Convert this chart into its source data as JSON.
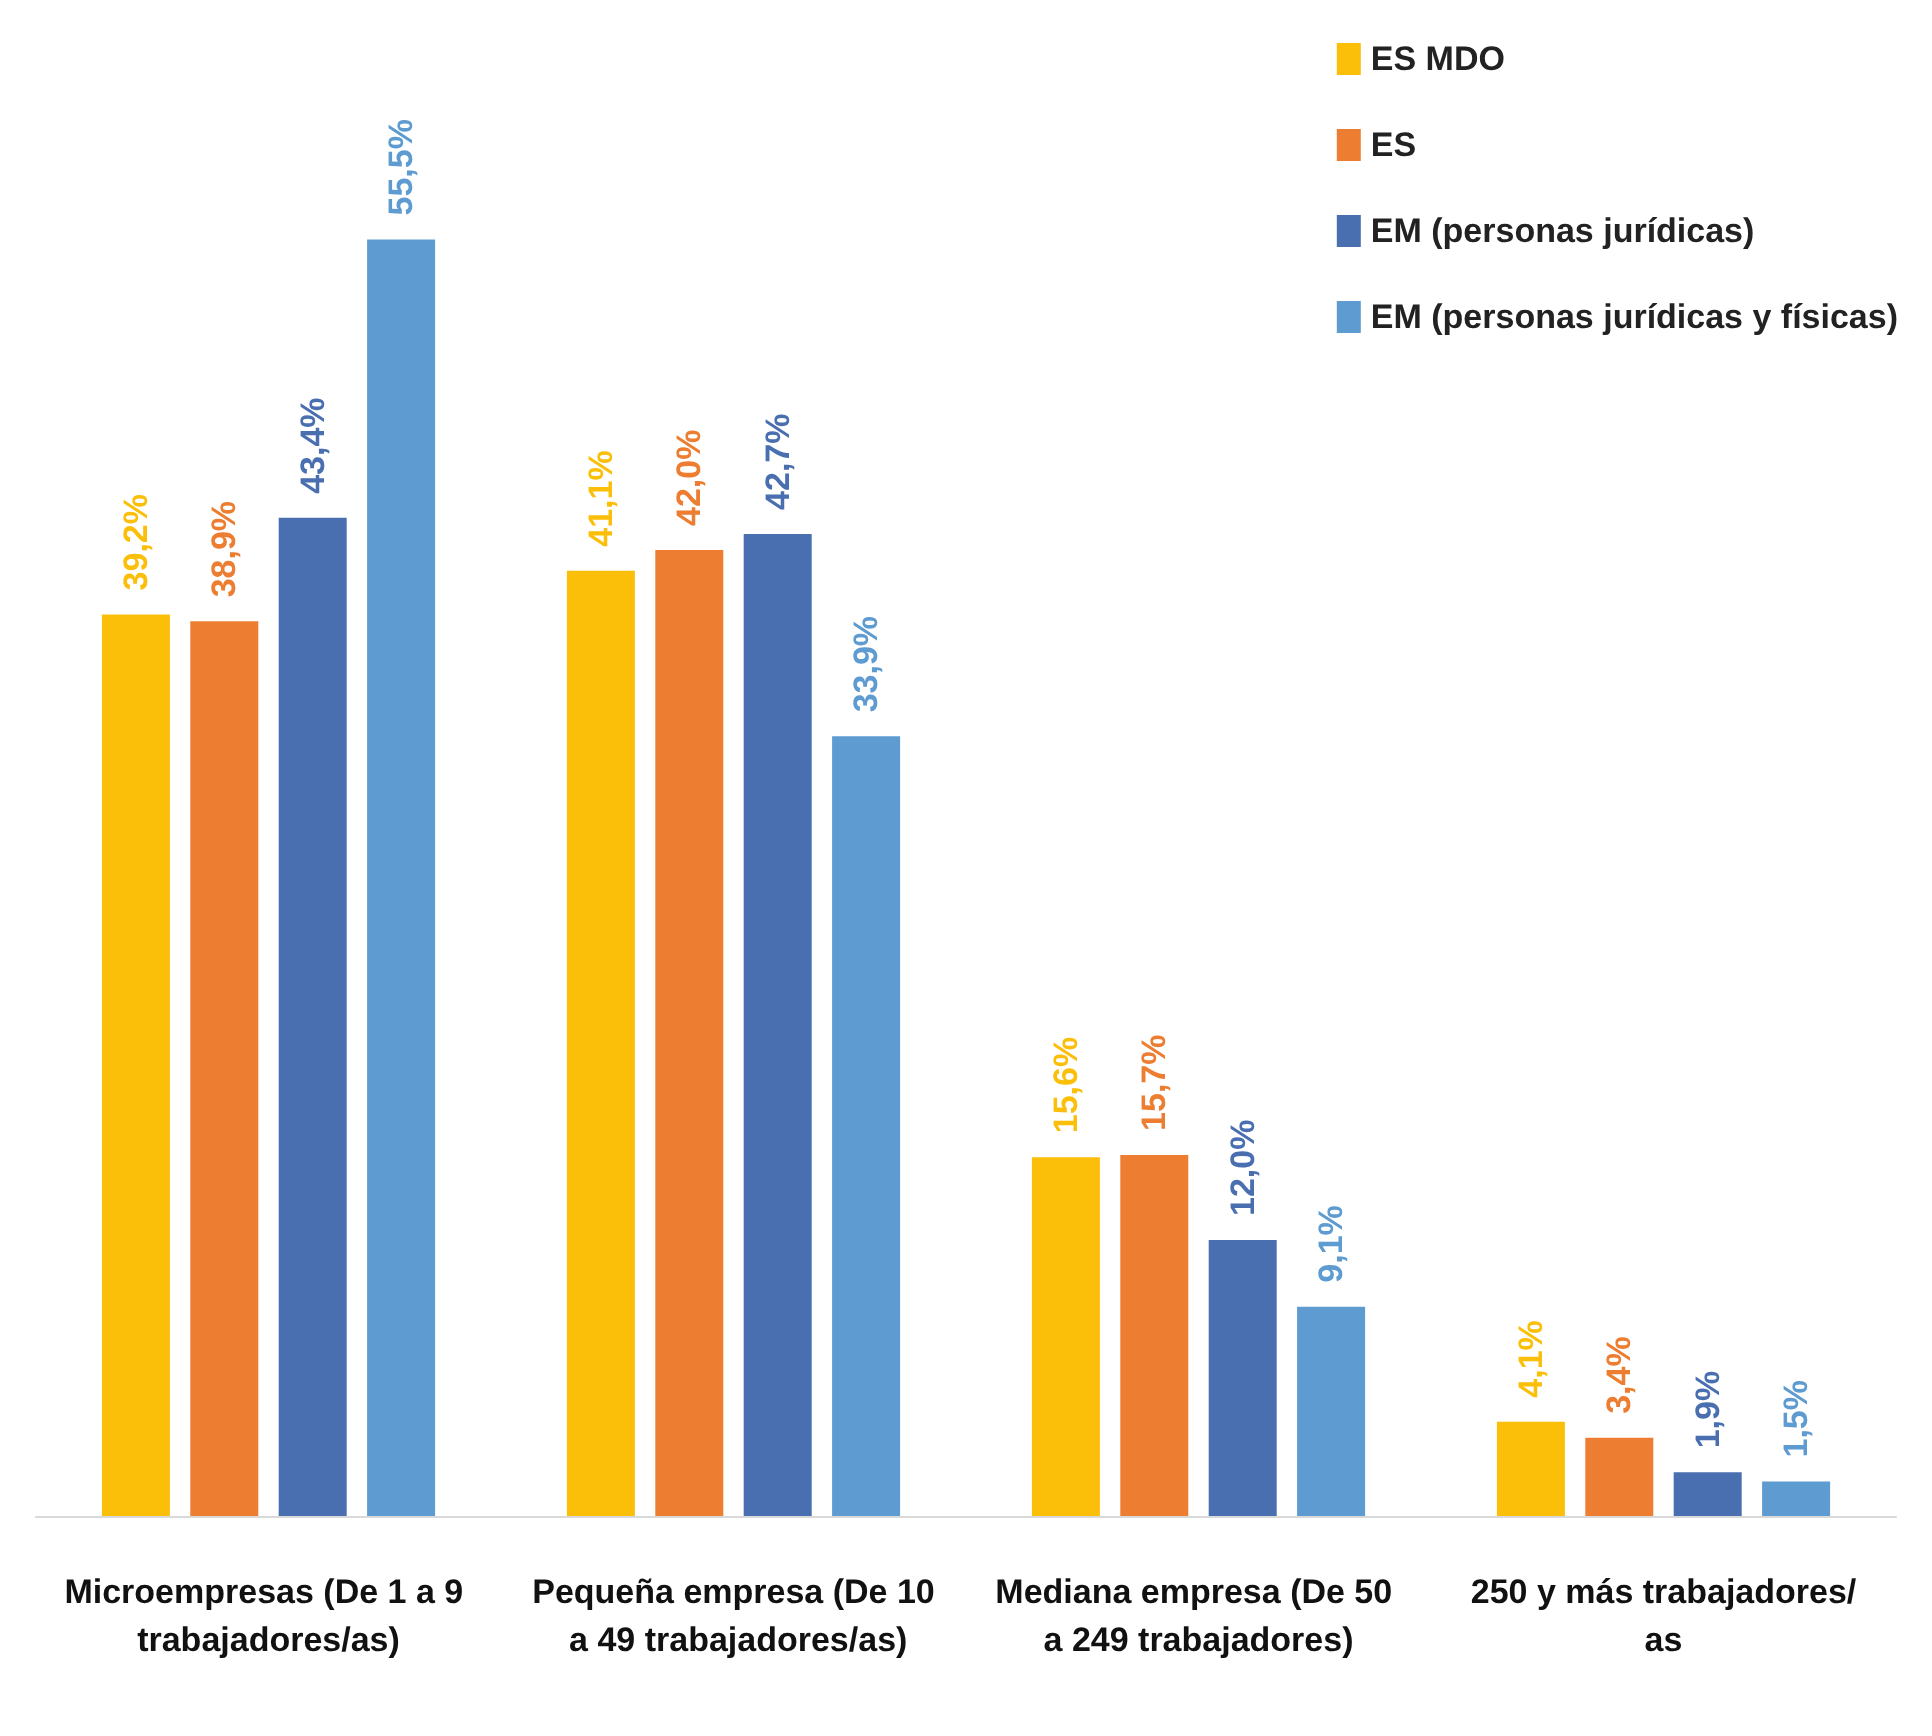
{
  "chart_data": {
    "type": "bar",
    "categories": [
      "Microempresas (De 1 a 9 trabajadores/as)",
      "Pequeña empresa (De 10 a 49 trabajadores/as)",
      "Mediana empresa (De 50 a 249 trabajadores)",
      "250 y más trabajadores/as"
    ],
    "series": [
      {
        "name": "ES MDO",
        "color": "#fbbf0a",
        "values": [
          39.2,
          41.1,
          15.6,
          4.1
        ],
        "value_labels": [
          "39,2%",
          "41,1%",
          "15,6%",
          "4,1%"
        ]
      },
      {
        "name": "ES",
        "color": "#ed7d31",
        "values": [
          38.9,
          42.0,
          15.7,
          3.4
        ],
        "value_labels": [
          "38,9%",
          "42,0%",
          "15,7%",
          "3,4%"
        ]
      },
      {
        "name": "EM (personas jurídicas)",
        "color": "#4a6fb1",
        "values": [
          43.4,
          42.7,
          12.0,
          1.9
        ],
        "value_labels": [
          "43,4%",
          "42,7%",
          "12,0%",
          "1,9%"
        ]
      },
      {
        "name": "EM (personas jurídicas y físicas)",
        "color": "#5d9bd1",
        "values": [
          55.5,
          33.9,
          9.1,
          1.5
        ],
        "value_labels": [
          "55,5%",
          "33,9%",
          "9,1%",
          "1,5%"
        ]
      }
    ],
    "legend": "top right",
    "grid": false
  }
}
